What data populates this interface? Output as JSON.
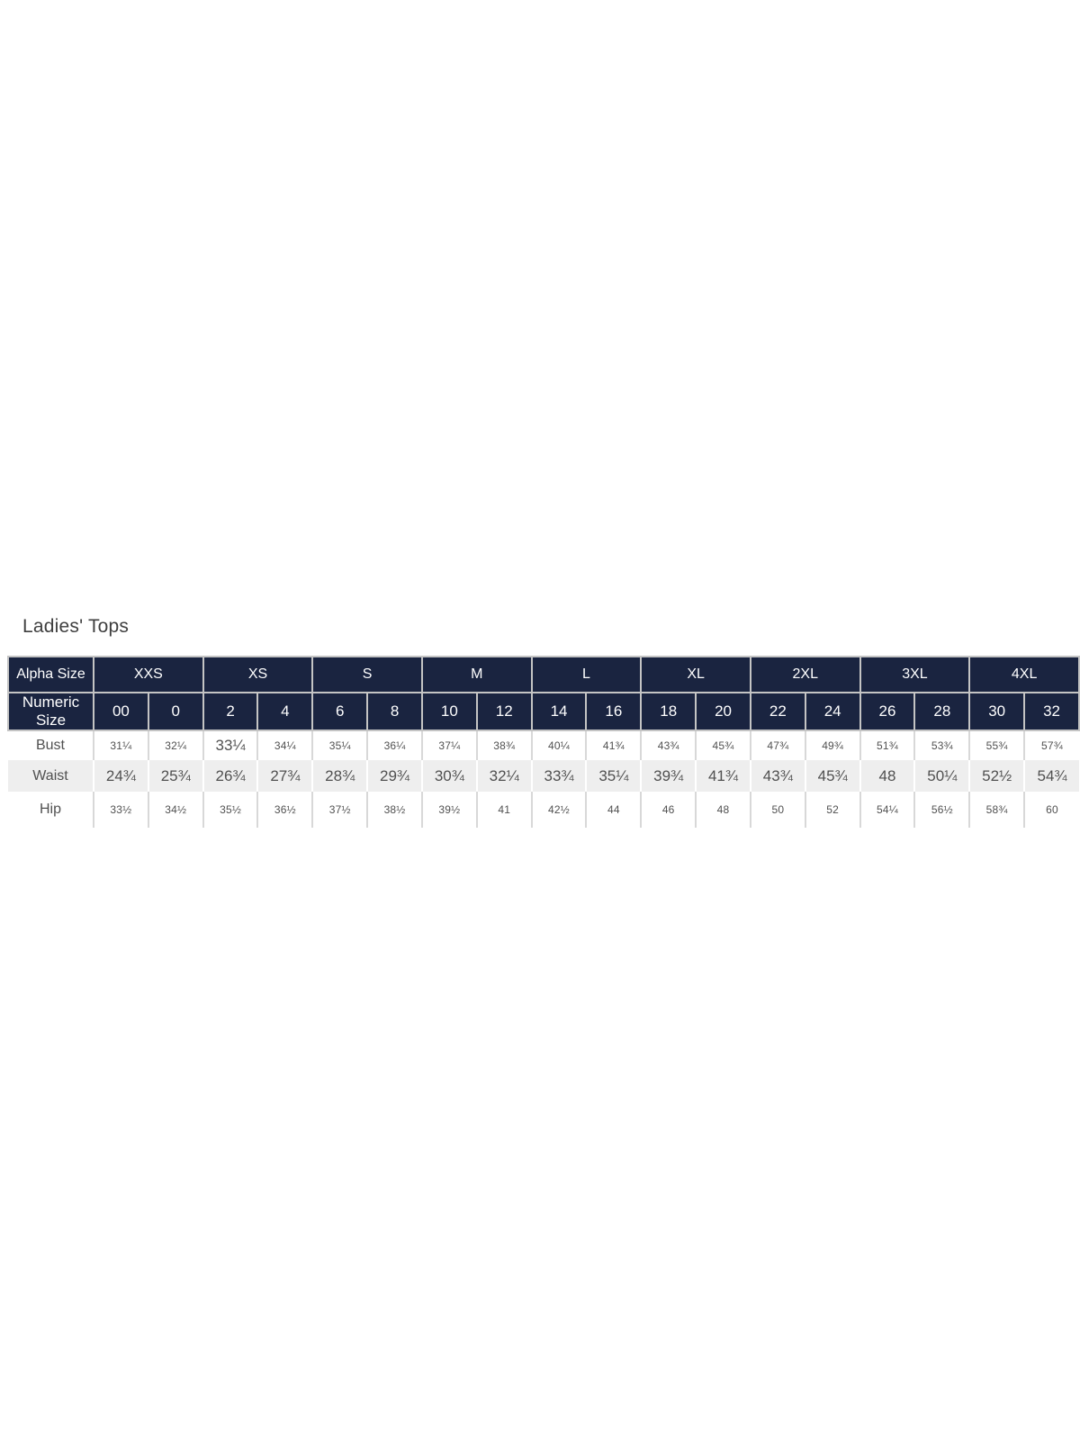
{
  "title": "Ladies' Tops",
  "table": {
    "alpha_label": "Alpha Size",
    "numeric_label": "Numeric Size",
    "alpha_sizes": [
      "XXS",
      "XS",
      "S",
      "M",
      "L",
      "XL",
      "2XL",
      "3XL",
      "4XL"
    ],
    "numeric_sizes": [
      "00",
      "0",
      "2",
      "4",
      "6",
      "8",
      "10",
      "12",
      "14",
      "16",
      "18",
      "20",
      "22",
      "24",
      "26",
      "28",
      "30",
      "32"
    ],
    "rows": [
      {
        "label": "Bust",
        "values": [
          "31¼",
          "32¼",
          "33¼",
          "34¼",
          "35¼",
          "36¼",
          "37¼",
          "38¾",
          "40¼",
          "41¾",
          "43¾",
          "45¾",
          "47¾",
          "49¾",
          "51¾",
          "53¾",
          "55¾",
          "57¾"
        ]
      },
      {
        "label": "Waist",
        "values": [
          "24¾",
          "25¾",
          "26¾",
          "27¾",
          "28¾",
          "29¾",
          "30¾",
          "32¼",
          "33¾",
          "35¼",
          "39¾",
          "41¾",
          "43¾",
          "45¾",
          "48",
          "50¼",
          "52½",
          "54¾"
        ]
      },
      {
        "label": "Hip",
        "values": [
          "33½",
          "34½",
          "35½",
          "36½",
          "37½",
          "38½",
          "39½",
          "41",
          "42½",
          "44",
          "46",
          "48",
          "50",
          "52",
          "54¼",
          "56½",
          "58¾",
          "60"
        ]
      }
    ],
    "colors": {
      "header_bg": "#1a2440",
      "header_text": "#ffffff",
      "alt_row_bg": "#eeeeee",
      "header_border": "#c4c4c4",
      "body_border": "#d8d8d8",
      "body_text": "#505050",
      "title_text": "#3f3f3f"
    }
  }
}
